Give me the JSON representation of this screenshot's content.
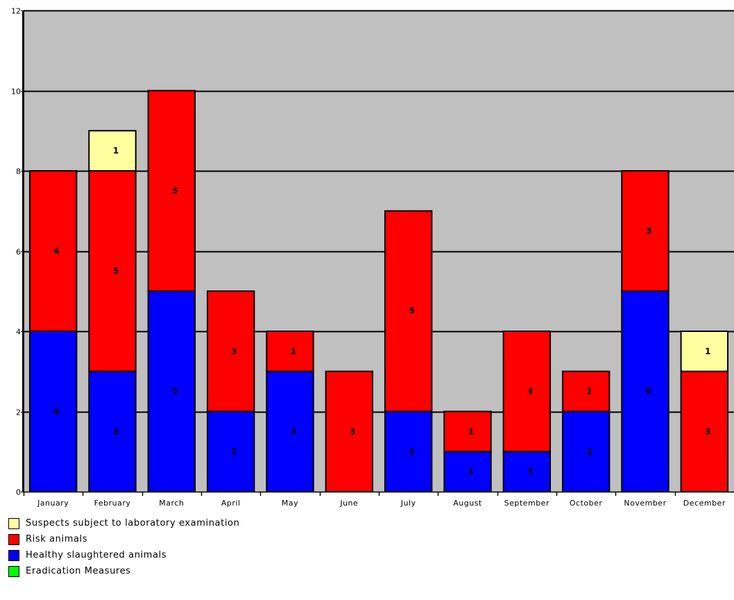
{
  "chart_data": {
    "type": "bar",
    "stacked": true,
    "categories": [
      "January",
      "February",
      "March",
      "April",
      "May",
      "June",
      "July",
      "August",
      "September",
      "October",
      "November",
      "December"
    ],
    "series": [
      {
        "name": "Healthy slaughtered animals",
        "color": "#0000ff",
        "values": [
          4,
          3,
          5,
          2,
          3,
          0,
          2,
          1,
          1,
          2,
          5,
          0
        ]
      },
      {
        "name": "Risk animals",
        "color": "#ff0000",
        "values": [
          4,
          5,
          5,
          3,
          1,
          3,
          5,
          1,
          3,
          1,
          3,
          3
        ]
      },
      {
        "name": "Suspects subject to laboratory examination",
        "color": "#ffffa0",
        "values": [
          0,
          1,
          0,
          0,
          0,
          0,
          0,
          0,
          0,
          0,
          0,
          1
        ]
      },
      {
        "name": "Eradication Measures",
        "color": "#00ff00",
        "values": [
          0,
          0,
          0,
          0,
          0,
          0,
          0,
          0,
          0,
          0,
          0,
          0
        ]
      }
    ],
    "ylim": [
      0,
      12
    ],
    "yticks": [
      0,
      2,
      4,
      6,
      8,
      10,
      12
    ],
    "grid": true,
    "plot_background": "#c0c0c0",
    "legend_position": "bottom-left"
  },
  "legend": [
    {
      "label": "Suspects subject to laboratory examination",
      "color": "#ffffa0",
      "icon": "square-swatch"
    },
    {
      "label": "Risk animals",
      "color": "#ff0000",
      "icon": "square-swatch"
    },
    {
      "label": "Healthy slaughtered animals",
      "color": "#0000ff",
      "icon": "square-swatch"
    },
    {
      "label": "Eradication Measures",
      "color": "#00ff00",
      "icon": "square-swatch"
    }
  ]
}
